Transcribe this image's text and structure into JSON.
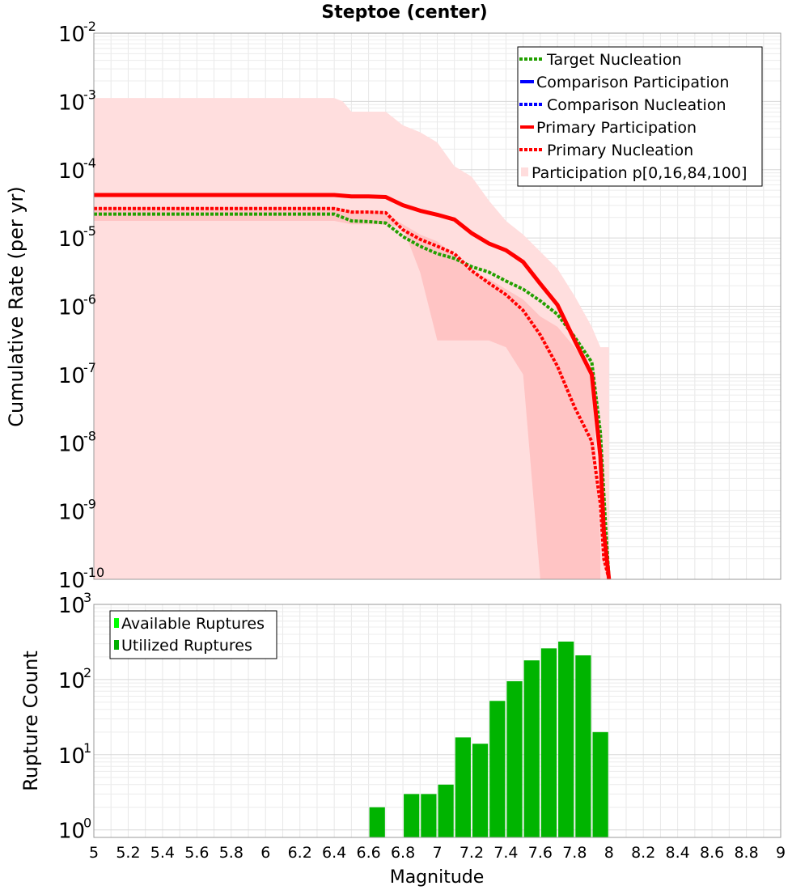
{
  "chart_data": [
    {
      "type": "line",
      "title": "Steptoe (center)",
      "xlabel": "",
      "ylabel": "Cumulative Rate (per yr)",
      "xlim": [
        5,
        9
      ],
      "ylim_log10": [
        -10,
        -2
      ],
      "yscale": "log",
      "grid": true,
      "legend_position": "top-right",
      "y_tick_labels": [
        {
          "base": "10",
          "exp": "-10",
          "log": -10
        },
        {
          "base": "10",
          "exp": "-9",
          "log": -9
        },
        {
          "base": "10",
          "exp": "-8",
          "log": -8
        },
        {
          "base": "10",
          "exp": "-7",
          "log": -7
        },
        {
          "base": "10",
          "exp": "-6",
          "log": -6
        },
        {
          "base": "10",
          "exp": "-5",
          "log": -5
        },
        {
          "base": "10",
          "exp": "-4",
          "log": -4
        },
        {
          "base": "10",
          "exp": "-3",
          "log": -3
        },
        {
          "base": "10",
          "exp": "-2",
          "log": -2
        }
      ],
      "legend": [
        {
          "label": "Target Nucleation",
          "color": "#22a000",
          "style": "dotted"
        },
        {
          "label": "Comparison Participation",
          "color": "#0000ff",
          "style": "solid"
        },
        {
          "label": "Comparison Nucleation",
          "color": "#0000ff",
          "style": "dotted"
        },
        {
          "label": "Primary Participation",
          "color": "#ff0000",
          "style": "solid"
        },
        {
          "label": "Primary Nucleation",
          "color": "#ff0000",
          "style": "dotted"
        },
        {
          "label": "Participation p[0,16,84,100]",
          "color": "#ffdddd",
          "style": "box"
        }
      ],
      "bands": [
        {
          "name": "p0-p100",
          "color": "#ffdede",
          "x": [
            5.0,
            6.4,
            6.45,
            6.5,
            6.6,
            6.7,
            6.8,
            6.9,
            7.0,
            7.1,
            7.2,
            7.3,
            7.4,
            7.5,
            7.6,
            7.7,
            7.8,
            7.9,
            7.95,
            8.0
          ],
          "upper_log10": [
            -2.95,
            -2.95,
            -3.0,
            -3.15,
            -3.15,
            -3.15,
            -3.35,
            -3.45,
            -3.6,
            -3.95,
            -4.1,
            -4.45,
            -4.75,
            -4.95,
            -5.2,
            -5.45,
            -5.85,
            -6.3,
            -6.6,
            -6.6
          ],
          "lower_log10": [
            -10,
            -10,
            -10,
            -10,
            -10,
            -10,
            -10,
            -10,
            -10,
            -10,
            -10,
            -10,
            -10,
            -10,
            -10,
            -10,
            -10,
            -10,
            -10,
            -10
          ],
          "x_end": 8.0
        },
        {
          "name": "p16-p84",
          "color": "#ffc4c4",
          "x": [
            5.0,
            6.4,
            6.5,
            6.6,
            6.7,
            6.8,
            6.9,
            7.0,
            7.1,
            7.2,
            7.3,
            7.4,
            7.5,
            7.6,
            7.7,
            7.8,
            7.9,
            7.95
          ],
          "upper_log10": [
            -4.55,
            -4.55,
            -4.6,
            -4.6,
            -4.65,
            -4.8,
            -4.95,
            -5.05,
            -5.25,
            -5.5,
            -5.6,
            -5.75,
            -5.9,
            -6.15,
            -6.3,
            -6.6,
            -7.0,
            -9.5
          ],
          "lower_log10": [
            -4.75,
            -4.75,
            -4.8,
            -4.8,
            -4.8,
            -4.85,
            -5.5,
            -6.5,
            -6.5,
            -6.5,
            -6.5,
            -6.6,
            -7.0,
            -10.0,
            -10.0,
            -10.0,
            -10.0,
            -10.0
          ]
        }
      ],
      "series": [
        {
          "name": "Primary Participation",
          "color": "#ff0000",
          "style": "solid",
          "x": [
            5.0,
            6.4,
            6.5,
            6.6,
            6.7,
            6.8,
            6.9,
            7.0,
            7.1,
            7.2,
            7.3,
            7.4,
            7.5,
            7.6,
            7.7,
            7.8,
            7.9,
            7.95,
            7.97,
            8.0
          ],
          "y_log10": [
            -4.37,
            -4.37,
            -4.39,
            -4.39,
            -4.4,
            -4.52,
            -4.6,
            -4.66,
            -4.73,
            -4.93,
            -5.08,
            -5.18,
            -5.35,
            -5.67,
            -5.98,
            -6.5,
            -7.0,
            -8.2,
            -9.3,
            -10.0
          ]
        },
        {
          "name": "Primary Nucleation",
          "color": "#ff0000",
          "style": "dotted",
          "x": [
            5.0,
            6.4,
            6.5,
            6.6,
            6.7,
            6.8,
            6.9,
            7.0,
            7.1,
            7.2,
            7.3,
            7.4,
            7.5,
            7.6,
            7.7,
            7.8,
            7.9,
            7.95,
            7.97,
            8.0
          ],
          "y_log10": [
            -4.57,
            -4.57,
            -4.62,
            -4.62,
            -4.63,
            -4.88,
            -5.02,
            -5.12,
            -5.23,
            -5.48,
            -5.66,
            -5.83,
            -6.06,
            -6.42,
            -6.88,
            -7.48,
            -7.98,
            -8.9,
            -9.7,
            -10.0
          ]
        },
        {
          "name": "Target Nucleation",
          "color": "#22a000",
          "style": "dotted",
          "x": [
            5.0,
            6.4,
            6.5,
            6.6,
            6.7,
            6.8,
            6.9,
            7.0,
            7.1,
            7.2,
            7.3,
            7.4,
            7.5,
            7.6,
            7.7,
            7.8,
            7.9,
            7.95,
            7.98,
            8.0
          ],
          "y_log10": [
            -4.65,
            -4.65,
            -4.75,
            -4.76,
            -4.78,
            -4.98,
            -5.12,
            -5.23,
            -5.3,
            -5.42,
            -5.5,
            -5.63,
            -5.75,
            -5.92,
            -6.12,
            -6.45,
            -6.82,
            -7.85,
            -9.2,
            -10.0
          ]
        }
      ]
    },
    {
      "type": "bar",
      "title": "",
      "xlabel": "Magnitude",
      "ylabel": "Rupture Count",
      "xlim": [
        5,
        9
      ],
      "ylim_log10": [
        -0.1,
        3
      ],
      "yscale": "log",
      "grid": true,
      "legend_position": "top-left",
      "x_tick_labels": [
        "5",
        "5.2",
        "5.4",
        "5.6",
        "5.8",
        "6",
        "6.2",
        "6.4",
        "6.6",
        "6.8",
        "7",
        "7.2",
        "7.4",
        "7.6",
        "7.8",
        "8",
        "8.2",
        "8.4",
        "8.6",
        "8.8",
        "9"
      ],
      "y_tick_labels": [
        {
          "base": "10",
          "exp": "0",
          "log": 0
        },
        {
          "base": "10",
          "exp": "1",
          "log": 1
        },
        {
          "base": "10",
          "exp": "2",
          "log": 2
        },
        {
          "base": "10",
          "exp": "3",
          "log": 3
        }
      ],
      "legend": [
        {
          "label": "Available Ruptures",
          "color": "#00ff00"
        },
        {
          "label": "Utilized Ruptures",
          "color": "#00b000"
        }
      ],
      "bar_width": 0.1,
      "bar_color": "#00b400",
      "bins": [
        6.65,
        6.85,
        6.95,
        7.05,
        7.15,
        7.25,
        7.35,
        7.45,
        7.55,
        7.65,
        7.75,
        7.85,
        7.95
      ],
      "values": [
        2,
        3,
        3,
        4,
        17,
        14,
        52,
        95,
        180,
        260,
        320,
        210,
        20
      ]
    }
  ]
}
